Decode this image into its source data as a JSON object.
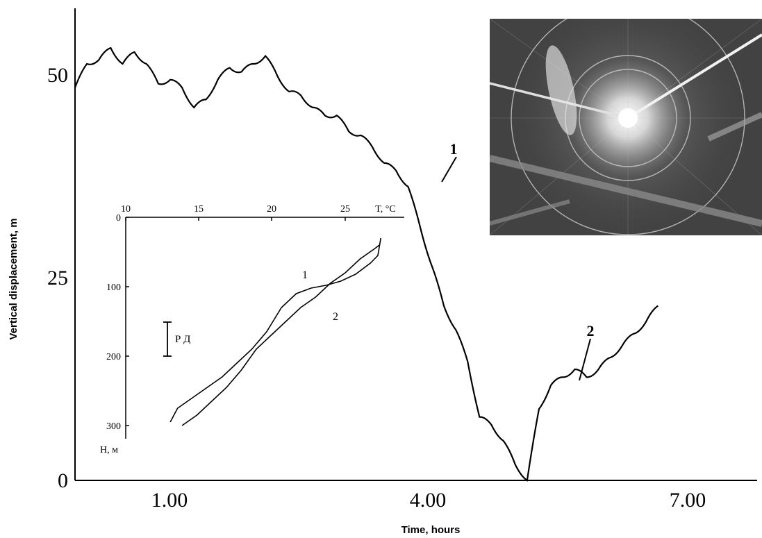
{
  "main": {
    "xlabel": "Time, hours",
    "ylabel": "Vertical displacement, m",
    "xticks": [
      "1.00",
      "4.00",
      "7.00"
    ],
    "yticks": [
      "0",
      "25",
      "50"
    ],
    "markers": [
      "1",
      "2"
    ]
  },
  "inset": {
    "x_unit_label": "T, °C",
    "y_unit_label": "H, м",
    "xticks": [
      "10",
      "15",
      "20",
      "25"
    ],
    "yticks": [
      "0",
      "100",
      "200",
      "300"
    ],
    "scale_label": "Р Д",
    "curve_labels": [
      "1",
      "2"
    ]
  },
  "chart_data": [
    {
      "type": "line",
      "xlabel": "Time, hours",
      "ylabel": "Vertical displacement, m",
      "xlim": [
        0,
        8.6
      ],
      "ylim": [
        0,
        59.5
      ],
      "x": [
        0,
        0.15,
        0.3,
        0.45,
        0.6,
        0.75,
        0.9,
        1.05,
        1.2,
        1.35,
        1.5,
        1.65,
        1.8,
        1.95,
        2.1,
        2.25,
        2.4,
        2.55,
        2.7,
        2.85,
        3.0,
        3.15,
        3.3,
        3.45,
        3.6,
        3.75,
        3.9,
        4.05,
        4.2,
        4.35,
        4.5,
        4.65,
        4.8,
        4.95,
        5.1,
        5.25,
        5.4,
        5.55,
        5.7,
        5.85,
        6.0,
        6.15,
        6.3,
        6.45,
        6.6,
        6.75,
        6.9,
        7.05,
        7.2,
        7.35
      ],
      "series": [
        {
          "values": [
            49.5,
            52.5,
            53,
            54.5,
            52.5,
            54,
            52.5,
            50,
            50.5,
            49.5,
            47,
            48,
            50.5,
            52,
            51.5,
            52.5,
            53.5,
            51,
            49,
            48.5,
            47,
            46,
            46,
            44,
            43.5,
            42,
            40,
            39,
            37,
            32,
            27,
            22,
            19,
            15,
            8,
            7,
            5,
            2,
            0,
            9,
            12,
            13,
            14,
            13,
            14,
            15.5,
            17,
            18.5,
            20,
            22
          ]
        }
      ],
      "annotations": [
        {
          "label": "1",
          "x": 4.15,
          "y": 36
        },
        {
          "label": "2",
          "x": 5.7,
          "y": 12.5
        }
      ]
    },
    {
      "type": "line",
      "xlabel": "T, °C",
      "ylabel": "H, м",
      "xlim": [
        10,
        28.5
      ],
      "ylim": [
        0,
        315
      ],
      "y_inverted": true,
      "series": [
        {
          "name": "1",
          "x": [
            13,
            13.5,
            14.5,
            15.5,
            16.5,
            17.5,
            18.5,
            19.5,
            20.5,
            21.5,
            22.5,
            23.5,
            24.5,
            25.5,
            26.5,
            27,
            27.2
          ],
          "y": [
            295,
            275,
            260,
            245,
            230,
            210,
            190,
            165,
            130,
            110,
            102,
            98,
            92,
            82,
            66,
            55,
            30
          ]
        },
        {
          "name": "2",
          "x": [
            13.8,
            14.8,
            15.8,
            16.8,
            17.8,
            18.8,
            19.8,
            20.8,
            21.8,
            22.8,
            23.8,
            24.8,
            25.8,
            26.8,
            27.1
          ],
          "y": [
            300,
            285,
            265,
            245,
            220,
            190,
            170,
            150,
            130,
            115,
            95,
            80,
            60,
            45,
            40
          ]
        }
      ],
      "annotations": [
        {
          "label": "1",
          "x": 22.6,
          "y": 85
        },
        {
          "label": "2",
          "x": 24.4,
          "y": 145
        },
        {
          "label": "Р Д",
          "x": 13.5,
          "y": 175
        }
      ]
    }
  ]
}
